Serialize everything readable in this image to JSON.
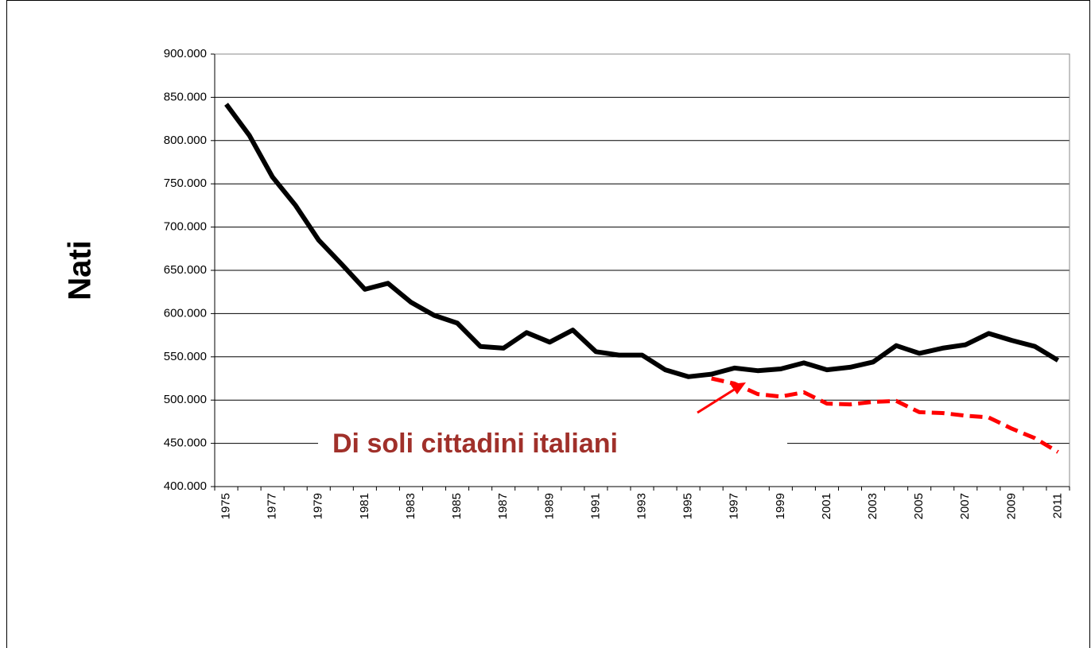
{
  "chart_data": {
    "type": "line",
    "y_label": "Nati",
    "annotation": "Di soli cittadini italiani",
    "categories": [
      "1975",
      null,
      "1977",
      null,
      "1979",
      null,
      "1981",
      null,
      "1983",
      null,
      "1985",
      null,
      "1987",
      null,
      "1989",
      null,
      "1991",
      null,
      "1993",
      null,
      "1995",
      null,
      "1997",
      null,
      "1999",
      null,
      "2001",
      null,
      "2003",
      null,
      "2005",
      null,
      "2007",
      null,
      "2009",
      null,
      "2011"
    ],
    "series": [
      {
        "color": "#000000",
        "dashed": false,
        "values": [
          842000,
          806000,
          758000,
          725000,
          685000,
          657000,
          628000,
          635000,
          613000,
          598000,
          589000,
          562000,
          560000,
          578000,
          567000,
          581000,
          556000,
          552000,
          552000,
          535000,
          527000,
          530000,
          537000,
          534000,
          536000,
          543000,
          535000,
          538000,
          544000,
          563000,
          554000,
          560000,
          564000,
          577000,
          569000,
          562000,
          546000
        ]
      },
      {
        "color": "#ff0000",
        "dashed": true,
        "values": [
          null,
          null,
          null,
          null,
          null,
          null,
          null,
          null,
          null,
          null,
          null,
          null,
          null,
          null,
          null,
          null,
          null,
          null,
          null,
          null,
          null,
          525000,
          519000,
          507000,
          504000,
          509000,
          496000,
          495000,
          498000,
          499000,
          486000,
          485000,
          482000,
          480000,
          467000,
          456000,
          440000
        ]
      }
    ],
    "ylim": [
      400000,
      900000
    ],
    "yticks": [
      {
        "value": 400000,
        "label": "400.000"
      },
      {
        "value": 450000,
        "label": "450.000"
      },
      {
        "value": 500000,
        "label": "500.000"
      },
      {
        "value": 550000,
        "label": "550.000"
      },
      {
        "value": 600000,
        "label": "600.000"
      },
      {
        "value": 650000,
        "label": "650.000"
      },
      {
        "value": 700000,
        "label": "700.000"
      },
      {
        "value": 750000,
        "label": "750.000"
      },
      {
        "value": 800000,
        "label": "800.000"
      },
      {
        "value": 850000,
        "label": "850.000"
      },
      {
        "value": 900000,
        "label": "900.000"
      }
    ],
    "grid": true
  }
}
